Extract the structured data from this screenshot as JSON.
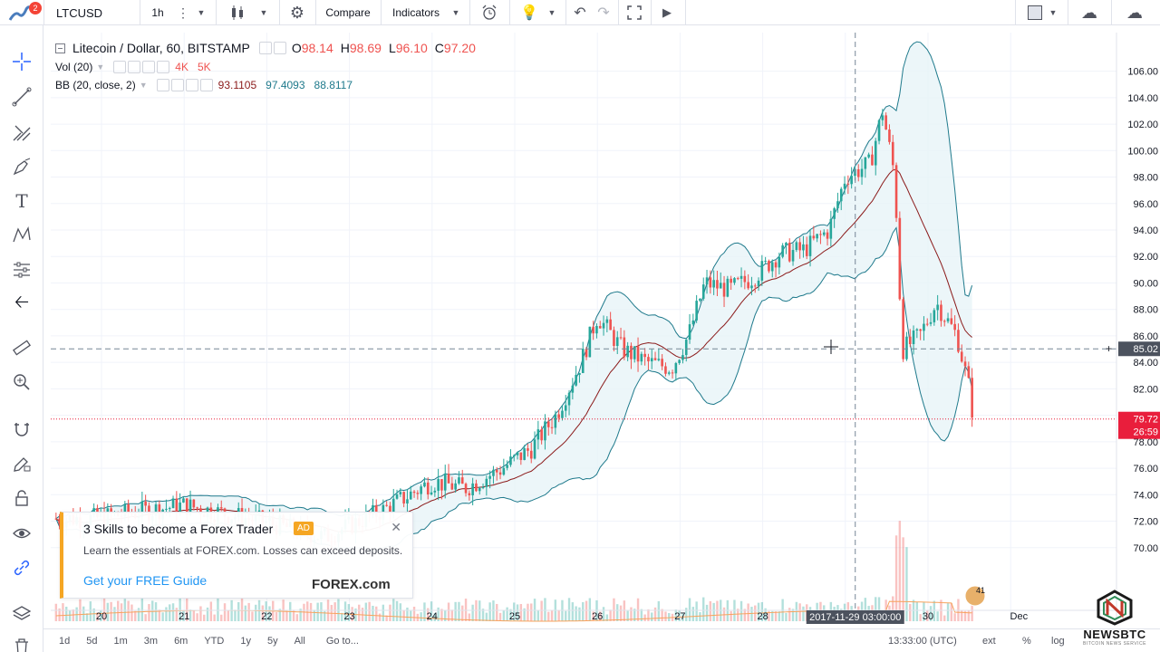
{
  "toolbar": {
    "symbol": "LTCUSD",
    "interval": "1h",
    "compare_label": "Compare",
    "indicators_label": "Indicators",
    "notification_count": "2"
  },
  "legend": {
    "title": "Litecoin / Dollar, 60, BITSTAMP",
    "open_label": "O",
    "open": "98.14",
    "high_label": "H",
    "high": "98.69",
    "low_label": "L",
    "low": "96.10",
    "close_label": "C",
    "close": "97.20",
    "vol_label": "Vol (20)",
    "vol_value1": "4K",
    "vol_value2": "5K",
    "bb_label": "BB (20, close, 2)",
    "bb_basis": "93.1105",
    "bb_upper": "97.4093",
    "bb_lower": "88.8117"
  },
  "price_axis": {
    "ticks": [
      "106.00",
      "104.00",
      "102.00",
      "100.00",
      "98.00",
      "96.00",
      "94.00",
      "92.00",
      "90.00",
      "88.00",
      "86.00",
      "84.00",
      "82.00",
      "80.00",
      "78.00",
      "76.00",
      "74.00",
      "72.00",
      "70.00"
    ],
    "crosshair_price": "85.02",
    "last_price": "79.72",
    "countdown": "26:59"
  },
  "time_axis": {
    "labels": [
      "20",
      "21",
      "22",
      "23",
      "24",
      "25",
      "26",
      "27",
      "28",
      "30",
      "Dec"
    ],
    "crosshair_time": "2017-11-29 03:00:00"
  },
  "volume_badge": "41",
  "ad": {
    "title": "3 Skills to become a Forex Trader",
    "badge": "AD",
    "body": "Learn the essentials at FOREX.com. Losses can exceed deposits.",
    "cta": "Get your FREE Guide",
    "brand": "FOREX.com"
  },
  "bottom": {
    "ranges": [
      "1d",
      "5d",
      "1m",
      "3m",
      "6m",
      "YTD",
      "1y",
      "5y",
      "All"
    ],
    "goto": "Go to...",
    "clock": "13:33:00 (UTC)",
    "opt_ext": "ext",
    "opt_percent": "%",
    "opt_log": "log"
  },
  "watermark": {
    "brand": "NEWSBTC",
    "tagline": "BITCOIN NEWS SERVICE"
  },
  "colors": {
    "up": "#26a69a",
    "down": "#ef5350",
    "bb_band": "#1f7a8c",
    "bb_basis": "#8b1a1a",
    "bb_fill": "#e7f4f7",
    "last_price": "#e91e3c",
    "vol_ma": "#f7a35c",
    "accent": "#2962ff"
  },
  "chart_data": {
    "type": "candlestick",
    "symbol": "LTCUSD",
    "interval": "60",
    "x_labels": [
      "20",
      "21",
      "22",
      "23",
      "24",
      "25",
      "26",
      "27",
      "28",
      "29",
      "30",
      "Dec"
    ],
    "ylim": [
      68,
      107
    ],
    "keyframes_close": [
      {
        "x": 19.9,
        "y": 72.2
      },
      {
        "x": 21.0,
        "y": 73.2
      },
      {
        "x": 22.0,
        "y": 71.9
      },
      {
        "x": 22.7,
        "y": 70.8
      },
      {
        "x": 23.4,
        "y": 72.8
      },
      {
        "x": 24.0,
        "y": 75.0
      },
      {
        "x": 24.4,
        "y": 74.5
      },
      {
        "x": 24.8,
        "y": 75.8
      },
      {
        "x": 25.2,
        "y": 77.5
      },
      {
        "x": 25.5,
        "y": 80.0
      },
      {
        "x": 25.8,
        "y": 84.0
      },
      {
        "x": 26.0,
        "y": 87.5
      },
      {
        "x": 26.3,
        "y": 85.0
      },
      {
        "x": 26.6,
        "y": 84.0
      },
      {
        "x": 26.9,
        "y": 83.6
      },
      {
        "x": 27.1,
        "y": 86.0
      },
      {
        "x": 27.3,
        "y": 90.0
      },
      {
        "x": 27.6,
        "y": 89.5
      },
      {
        "x": 27.9,
        "y": 90.5
      },
      {
        "x": 28.2,
        "y": 92.2
      },
      {
        "x": 28.5,
        "y": 92.5
      },
      {
        "x": 28.8,
        "y": 94.0
      },
      {
        "x": 29.0,
        "y": 98.0
      },
      {
        "x": 29.3,
        "y": 99.0
      },
      {
        "x": 29.45,
        "y": 103.0
      },
      {
        "x": 29.6,
        "y": 98.0
      },
      {
        "x": 29.65,
        "y": 90.0
      },
      {
        "x": 29.7,
        "y": 85.0
      },
      {
        "x": 29.9,
        "y": 86.0
      },
      {
        "x": 30.1,
        "y": 88.5
      },
      {
        "x": 30.35,
        "y": 86.0
      },
      {
        "x": 30.5,
        "y": 82.0
      },
      {
        "x": 30.55,
        "y": 79.7
      }
    ]
  }
}
